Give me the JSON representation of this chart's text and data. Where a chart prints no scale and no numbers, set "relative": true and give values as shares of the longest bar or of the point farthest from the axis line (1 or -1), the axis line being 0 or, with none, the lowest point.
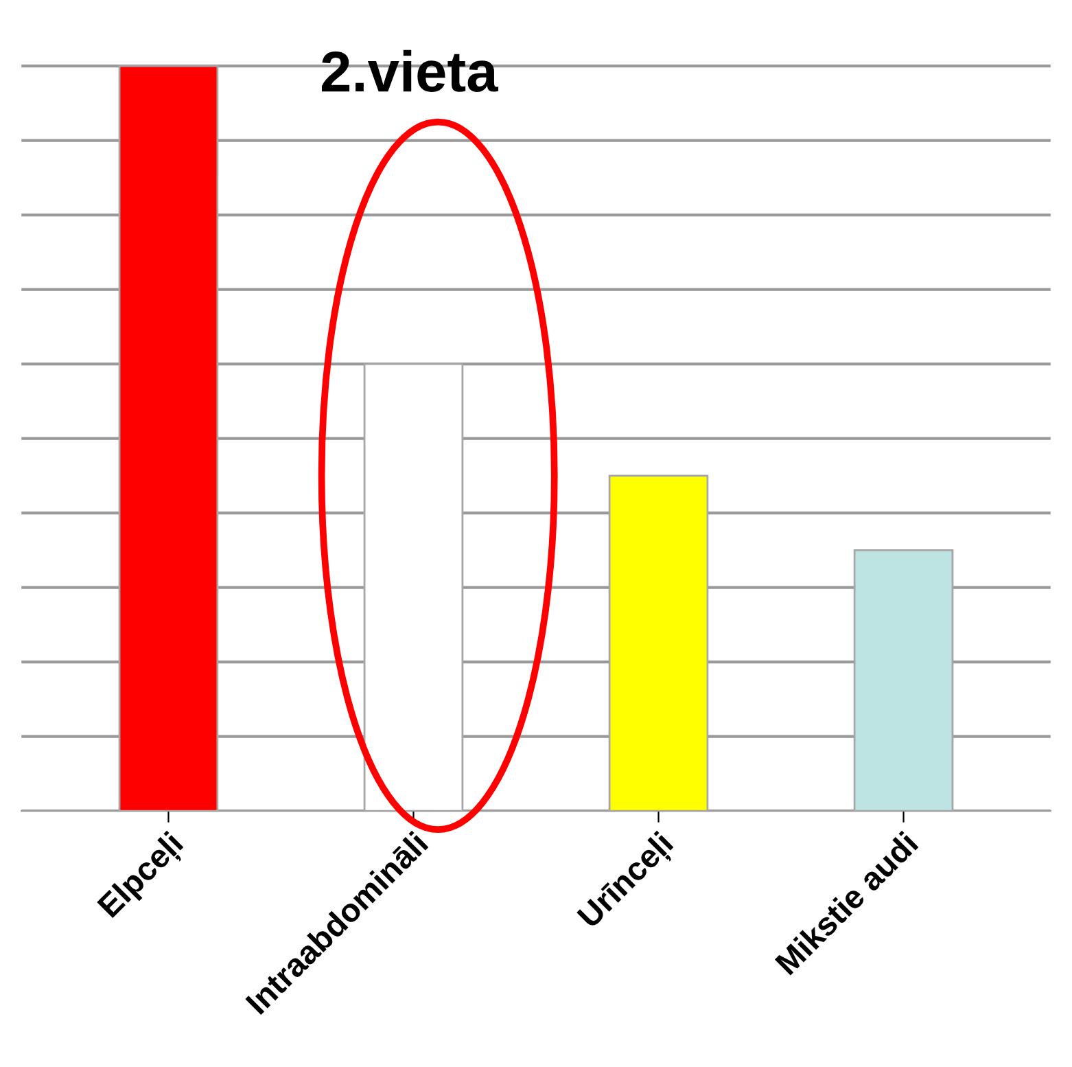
{
  "chart_data": {
    "type": "bar",
    "relative": true,
    "categories": [
      "Elpceļi",
      "Intraabdomināli",
      "Urīnceļi",
      "Mikstie audi"
    ],
    "values": [
      1,
      0.6,
      0.45,
      0.35
    ],
    "colors": [
      "#ff0000",
      "#ffffff",
      "#ffff00",
      "#bde3e3"
    ],
    "annotations": [
      "2.vieta"
    ],
    "grid": "y"
  }
}
